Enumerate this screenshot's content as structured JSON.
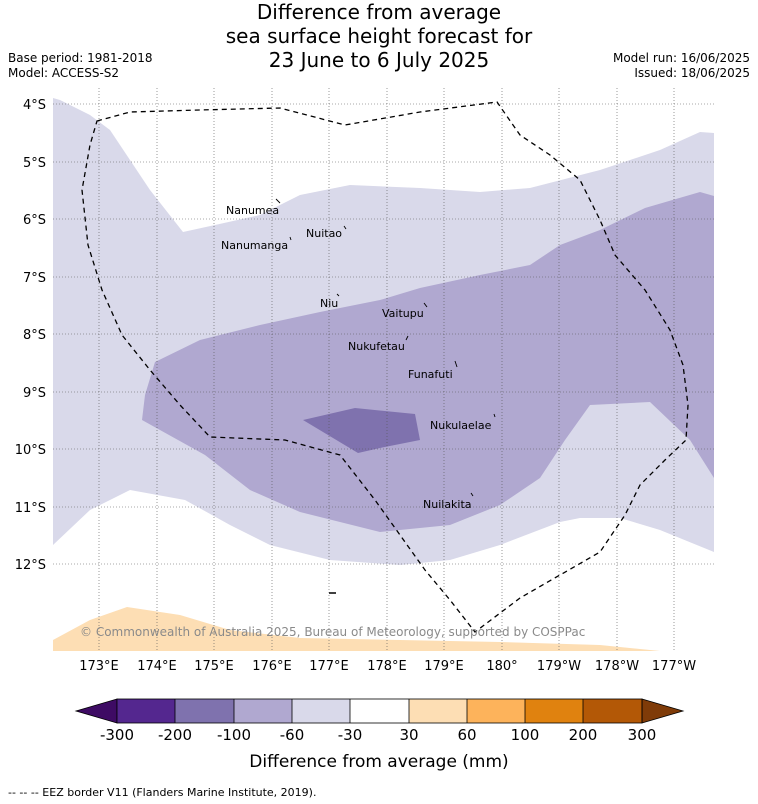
{
  "title": {
    "line1": "Difference from average",
    "line2": "sea surface height forecast for",
    "line3": "23 June to 6 July 2025"
  },
  "meta": {
    "base_period": "Base period: 1981-2018",
    "model": "Model: ACCESS-S2",
    "model_run": "Model run: 16/06/2025",
    "issued": "Issued: 18/06/2025"
  },
  "map": {
    "lat_labels": [
      "4°S",
      "5°S",
      "6°S",
      "7°S",
      "8°S",
      "9°S",
      "10°S",
      "11°S",
      "12°S"
    ],
    "lon_labels": [
      "173°E",
      "174°E",
      "175°E",
      "176°E",
      "177°E",
      "178°E",
      "179°E",
      "180°",
      "179°W",
      "178°W",
      "177°W"
    ],
    "places": [
      "Nanumea",
      "Nuitao",
      "Nanumanga",
      "Niu",
      "Vaitupu",
      "Nukufetau",
      "Funafuti",
      "Nukulaelae",
      "Nuilakita"
    ],
    "copyright": "© Commonwealth of Australia 2025, Bureau of Meteorology, supported by COSPPac",
    "colors": {
      "band_m30_m60": "#d9d9ea",
      "band_m60_m100": "#b0a8d0",
      "band_m100_m200": "#7f72ae",
      "band_p30_p60": "#fddeb4",
      "eez_line": "#000000"
    }
  },
  "colorbar": {
    "tick_labels": [
      "-300",
      "-200",
      "-100",
      "-60",
      "-30",
      "30",
      "60",
      "100",
      "200",
      "300"
    ],
    "colors": [
      "#3e0b64",
      "#54278f",
      "#7f72ae",
      "#b0a8d0",
      "#d9d9ea",
      "#ffffff",
      "#fddeb4",
      "#fdb35b",
      "#e0820f",
      "#b35806",
      "#7f3b08"
    ],
    "title": "Difference from average (mm)"
  },
  "footnote": "-- -- -- EEZ border V11 (Flanders Marine Institute, 2019)."
}
